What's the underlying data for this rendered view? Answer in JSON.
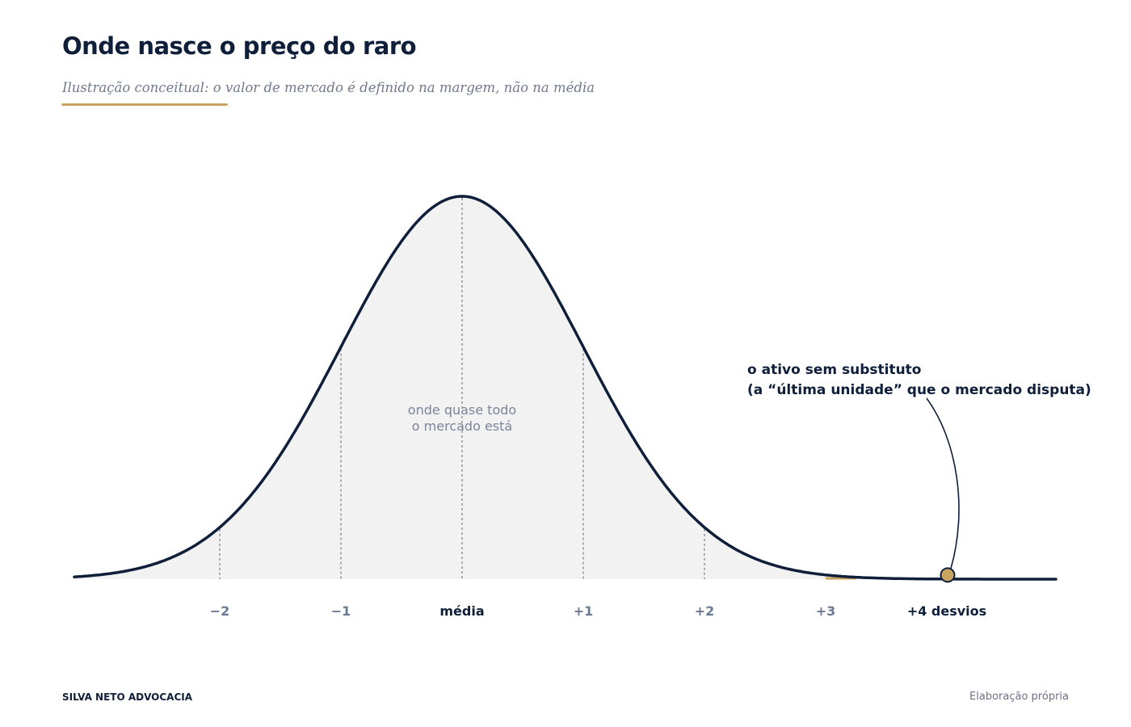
{
  "header": {
    "title": "Onde nasce o preço do raro",
    "subtitle": "Ilustração conceitual: o valor de mercado é definido na margem, não na média"
  },
  "footer": {
    "brand": "SILVA NETO ADVOCACIA",
    "source": "Elaboração própria"
  },
  "colors": {
    "navy": "#0f1f3a",
    "gold": "#c9a461",
    "fill": "#f2f2f3",
    "muted": "#6b7a92"
  },
  "chart_data": {
    "type": "area",
    "distribution": "normal",
    "mean": 0,
    "sd": 1,
    "x_range": [
      -3.2,
      4.9
    ],
    "x_ticks": [
      {
        "value": -2,
        "label": "−2",
        "emphasis": false
      },
      {
        "value": -1,
        "label": "−1",
        "emphasis": false
      },
      {
        "value": 0,
        "label": "média",
        "emphasis": true
      },
      {
        "value": 1,
        "label": "+1",
        "emphasis": false
      },
      {
        "value": 2,
        "label": "+2",
        "emphasis": false
      },
      {
        "value": 3,
        "label": "+3",
        "emphasis": false
      },
      {
        "value": 4,
        "label": "+4 desvios",
        "emphasis": true
      }
    ],
    "reference_lines": [
      -2,
      -1,
      0,
      1,
      2
    ],
    "center_annotation": [
      "onde quase todo",
      "o mercado está"
    ],
    "highlight_point": {
      "x": 4,
      "label_lines": [
        "o ativo sem substituto",
        "(a “última unidade” que o mercado disputa)"
      ]
    },
    "grid": false,
    "legend": "none"
  }
}
